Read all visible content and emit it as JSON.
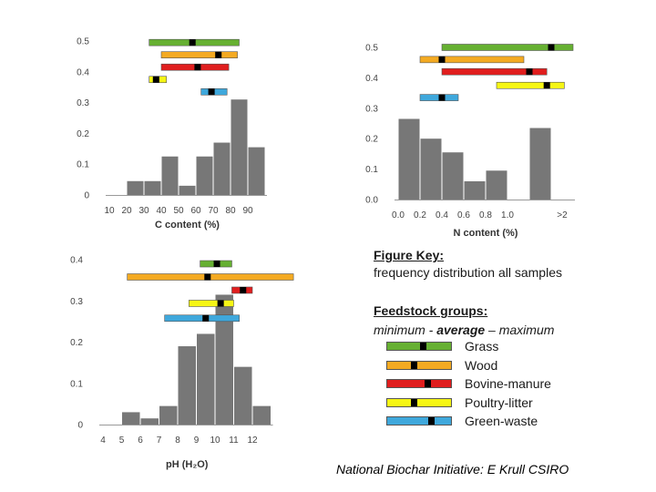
{
  "chart_data": [
    {
      "type": "bar",
      "id": "carbon",
      "xlabel": "C content (%)",
      "ylabel": "",
      "ylim": [
        0,
        0.5
      ],
      "yticks": [
        "0",
        "0.1",
        "0.2",
        "0.3",
        "0.4",
        "0.5"
      ],
      "xticks": [
        "10",
        "20",
        "30",
        "40",
        "50",
        "60",
        "70",
        "80",
        "90"
      ],
      "categories": [
        "15",
        "25",
        "35",
        "45",
        "55",
        "65",
        "75",
        "85",
        "95"
      ],
      "values": [
        0.0,
        0.045,
        0.045,
        0.125,
        0.03,
        0.125,
        0.17,
        0.31,
        0.155
      ],
      "ranges": [
        {
          "group": "Grass",
          "min": 33,
          "avg": 58,
          "max": 85,
          "y": 0.495
        },
        {
          "group": "Wood",
          "min": 40,
          "avg": 73,
          "max": 84,
          "y": 0.455
        },
        {
          "group": "Bovine-manure",
          "min": 40,
          "avg": 61,
          "max": 79,
          "y": 0.415
        },
        {
          "group": "Poultry-litter",
          "min": 33,
          "avg": 37,
          "max": 43,
          "y": 0.375
        },
        {
          "group": "Green-waste",
          "min": 63,
          "avg": 69,
          "max": 78,
          "y": 0.335
        }
      ]
    },
    {
      "type": "bar",
      "id": "nitrogen",
      "xlabel": "N content (%)",
      "ylabel": "",
      "ylim": [
        0,
        0.5
      ],
      "yticks": [
        "0.0",
        "0.1",
        "0.2",
        "0.3",
        "0.4",
        "0.5"
      ],
      "xticks": [
        "0.0",
        "0.2",
        "0.4",
        "0.6",
        "0.8",
        "1.0",
        "",
        ">2"
      ],
      "categories": [
        "0.0-0.2",
        "0.2-0.4",
        "0.4-0.6",
        "0.6-0.8",
        "0.8-1.0",
        "1.0-1.2",
        "1.2-2",
        ">2"
      ],
      "values": [
        0.265,
        0.2,
        0.155,
        0.06,
        0.095,
        0.0,
        0.235,
        0.0
      ],
      "ranges": [
        {
          "group": "Grass",
          "min": 0.4,
          "avg": 1.7,
          "max": 2.2,
          "y": 0.5
        },
        {
          "group": "Wood",
          "min": 0.2,
          "avg": 0.4,
          "max": 1.15,
          "y": 0.46
        },
        {
          "group": "Bovine-manure",
          "min": 0.4,
          "avg": 1.2,
          "max": 1.6,
          "y": 0.42
        },
        {
          "group": "Poultry-litter",
          "min": 0.9,
          "avg": 1.6,
          "max": 2.0,
          "y": 0.375
        },
        {
          "group": "Green-waste",
          "min": 0.2,
          "avg": 0.4,
          "max": 0.55,
          "y": 0.335
        }
      ]
    },
    {
      "type": "bar",
      "id": "ph",
      "xlabel": "pH (H₂O)",
      "ylabel": "",
      "ylim": [
        0,
        0.4
      ],
      "yticks": [
        "0",
        "0.1",
        "0.2",
        "0.3",
        "0.4"
      ],
      "xticks": [
        "4",
        "5",
        "6",
        "7",
        "8",
        "9",
        "10",
        "11",
        "12"
      ],
      "categories": [
        "4.5",
        "5.5",
        "6.5",
        "7.5",
        "8.5",
        "9.5",
        "10.5",
        "11.5",
        "12.5"
      ],
      "values": [
        0.0,
        0.03,
        0.015,
        0.045,
        0.19,
        0.22,
        0.315,
        0.14,
        0.045
      ],
      "ranges": [
        {
          "group": "Grass",
          "min": 9.2,
          "avg": 10.1,
          "max": 10.9,
          "y": 0.39
        },
        {
          "group": "Wood",
          "min": 5.3,
          "avg": 9.6,
          "max": 14.2,
          "y": 0.358
        },
        {
          "group": "Bovine-manure",
          "min": 10.9,
          "avg": 11.5,
          "max": 12.0,
          "y": 0.326
        },
        {
          "group": "Poultry-litter",
          "min": 8.6,
          "avg": 10.3,
          "max": 11.0,
          "y": 0.294
        },
        {
          "group": "Green-waste",
          "min": 7.3,
          "avg": 9.5,
          "max": 11.3,
          "y": 0.258
        }
      ]
    }
  ],
  "colors": {
    "bar": "#777777",
    "Grass": "#66b032",
    "Wood": "#f4aa22",
    "Bovine-manure": "#e01e1e",
    "Poultry-litter": "#f6f615",
    "Green-waste": "#3fa8dc",
    "marker": "#000000"
  },
  "key": {
    "title": "Figure Key:",
    "subtitle": "frequency distribution all samples",
    "groups_title": "Feedstock groups:",
    "range_min": "minimum - ",
    "range_avg": "average",
    "range_max": " – maximum",
    "items": [
      {
        "label": "Grass",
        "color": "#66b032",
        "marker": 0.55
      },
      {
        "label": "Wood",
        "color": "#f4aa22",
        "marker": 0.42
      },
      {
        "label": "Bovine-manure",
        "color": "#e01e1e",
        "marker": 0.62
      },
      {
        "label": "Poultry-litter",
        "color": "#f6f615",
        "marker": 0.42
      },
      {
        "label": "Green-waste",
        "color": "#3fa8dc",
        "marker": 0.68
      }
    ]
  },
  "footer": "National Biochar Initiative: E Krull CSIRO"
}
